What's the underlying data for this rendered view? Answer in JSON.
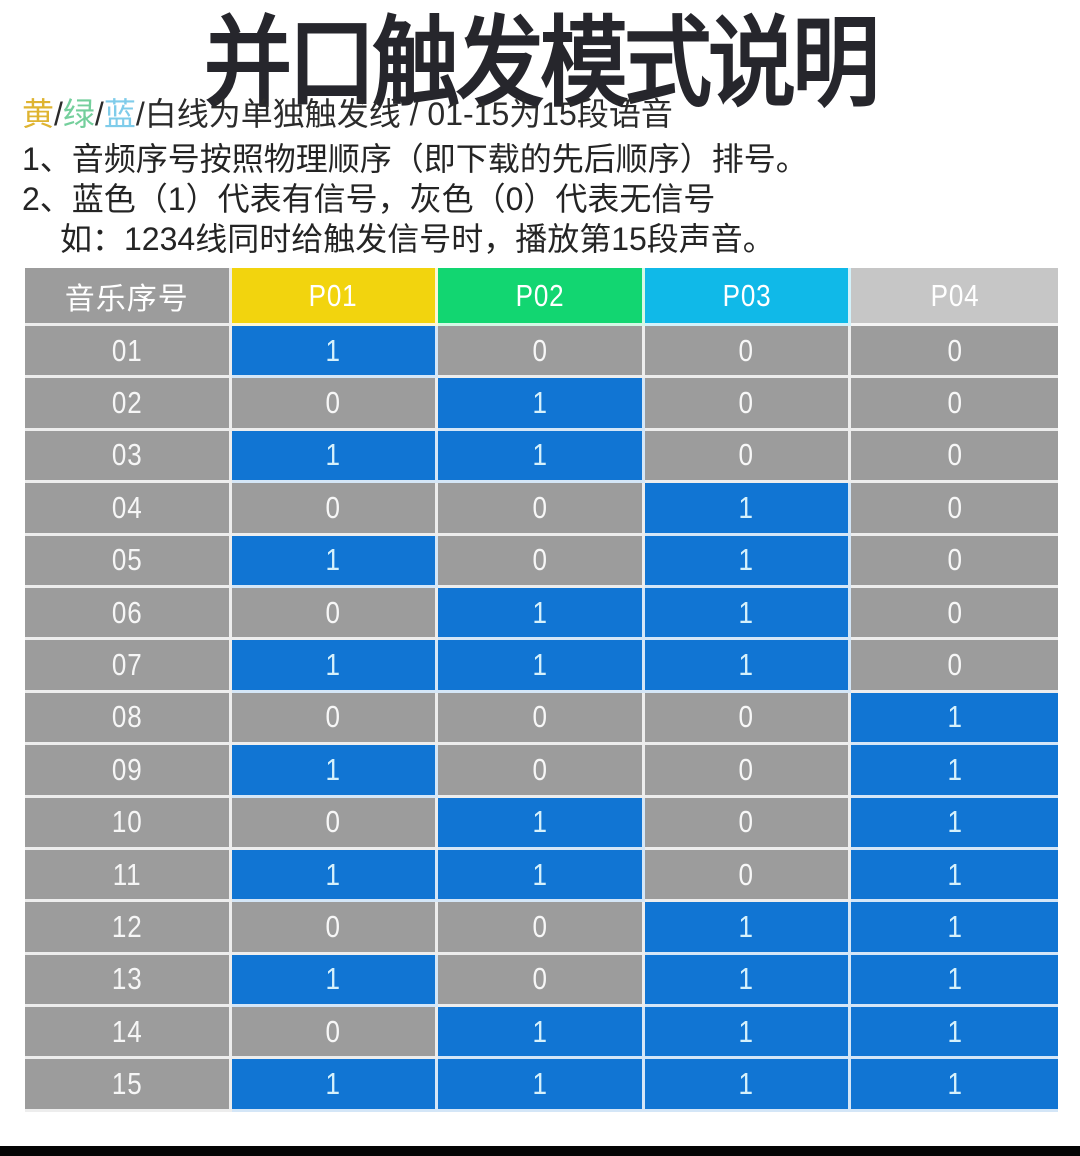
{
  "title": "并口触发模式说明",
  "legend": {
    "segments": [
      {
        "text": "黄",
        "color": "#dfb431"
      },
      {
        "text": "/",
        "color": "#2b2b2b"
      },
      {
        "text": "绿",
        "color": "#74cf9c"
      },
      {
        "text": "/",
        "color": "#2b2b2b"
      },
      {
        "text": "蓝",
        "color": "#7fccea"
      },
      {
        "text": "/",
        "color": "#2b2b2b"
      },
      {
        "text": "白线为单独触发线 / 01-15为15段语音",
        "color": "#2b2b2b"
      }
    ]
  },
  "notes": [
    "1、音频序号按照物理顺序（即下载的先后顺序）排号。",
    "2、蓝色（1）代表有信号，灰色（0）代表无信号",
    "如：1234线同时给触发信号时，播放第15段声音。"
  ],
  "table": {
    "row_header_label": "音乐序号",
    "columns": [
      {
        "label": "P01",
        "header_color": "#f2d40e"
      },
      {
        "label": "P02",
        "header_color": "#12d671"
      },
      {
        "label": "P03",
        "header_color": "#10b9e8"
      },
      {
        "label": "P04",
        "header_color": "#c6c6c6"
      }
    ],
    "rows": [
      {
        "label": "01",
        "values": [
          1,
          0,
          0,
          0
        ]
      },
      {
        "label": "02",
        "values": [
          0,
          1,
          0,
          0
        ]
      },
      {
        "label": "03",
        "values": [
          1,
          1,
          0,
          0
        ]
      },
      {
        "label": "04",
        "values": [
          0,
          0,
          1,
          0
        ]
      },
      {
        "label": "05",
        "values": [
          1,
          0,
          1,
          0
        ]
      },
      {
        "label": "06",
        "values": [
          0,
          1,
          1,
          0
        ]
      },
      {
        "label": "07",
        "values": [
          1,
          1,
          1,
          0
        ]
      },
      {
        "label": "08",
        "values": [
          0,
          0,
          0,
          1
        ]
      },
      {
        "label": "09",
        "values": [
          1,
          0,
          0,
          1
        ]
      },
      {
        "label": "10",
        "values": [
          0,
          1,
          0,
          1
        ]
      },
      {
        "label": "11",
        "values": [
          1,
          1,
          0,
          1
        ]
      },
      {
        "label": "12",
        "values": [
          0,
          0,
          1,
          1
        ]
      },
      {
        "label": "13",
        "values": [
          1,
          0,
          1,
          1
        ]
      },
      {
        "label": "14",
        "values": [
          0,
          1,
          1,
          1
        ]
      },
      {
        "label": "15",
        "values": [
          1,
          1,
          1,
          1
        ]
      }
    ]
  },
  "colors": {
    "signal_on_bg": "#1175d3",
    "signal_off_bg": "#9c9c9c",
    "row_label_bg": "#9c9c9c",
    "corner_bg": "#9c9c9c",
    "on_text": "#d6f1fb",
    "off_text": "#f7f7f7",
    "header_text": "#ffffff",
    "bottom_bar": "#050505"
  }
}
